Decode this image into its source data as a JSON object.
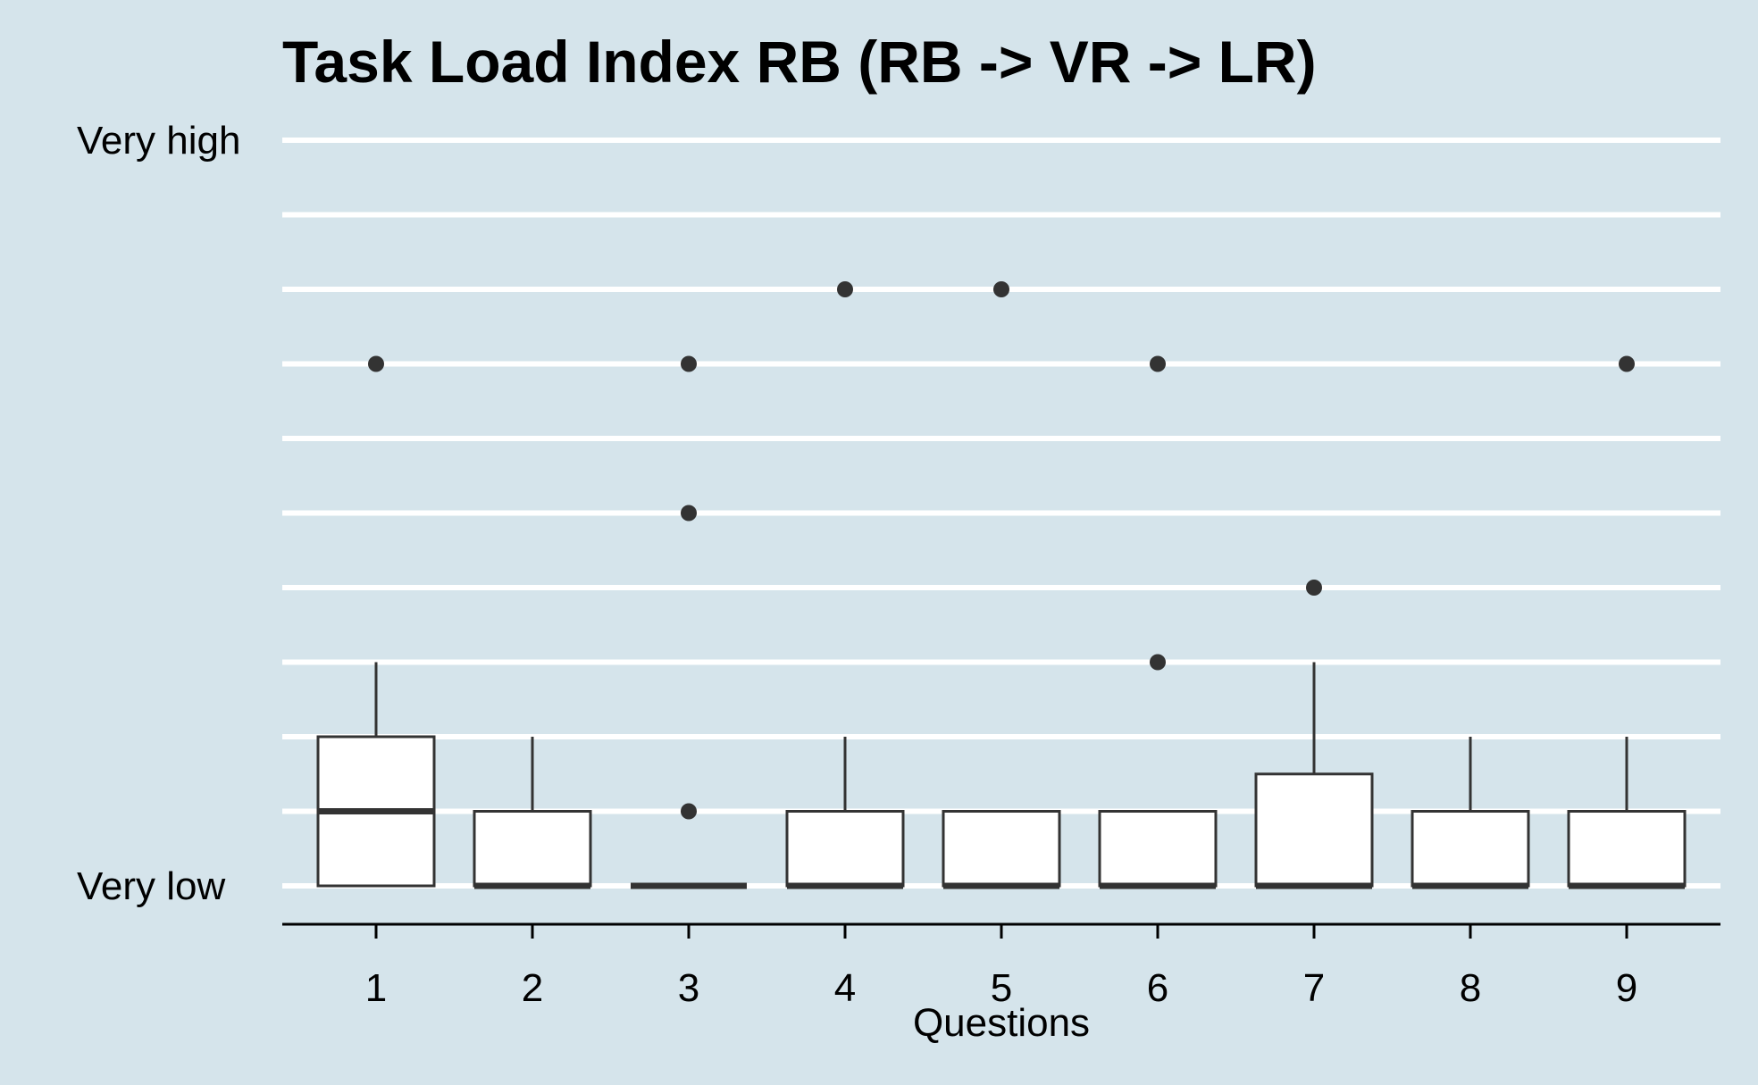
{
  "chart_data": {
    "type": "box",
    "title": "Task Load Index RB (RB -> VR -> LR)",
    "xlabel": "Questions",
    "ylabel": "",
    "ylim": [
      1,
      11
    ],
    "y_tick_labels": [
      {
        "value": 11,
        "label": "Very high"
      },
      {
        "value": 1,
        "label": "Very low"
      }
    ],
    "gridlines": [
      1,
      2,
      3,
      4,
      5,
      6,
      7,
      8,
      9,
      10,
      11
    ],
    "categories": [
      "1",
      "2",
      "3",
      "4",
      "5",
      "6",
      "7",
      "8",
      "9"
    ],
    "boxes": [
      {
        "category": "1",
        "lower_whisker": 1,
        "q1": 1,
        "median": 2,
        "q3": 3,
        "upper_whisker": 4,
        "outliers": [
          8
        ]
      },
      {
        "category": "2",
        "lower_whisker": 1,
        "q1": 1,
        "median": 1,
        "q3": 2,
        "upper_whisker": 3,
        "outliers": []
      },
      {
        "category": "3",
        "lower_whisker": 1,
        "q1": 1,
        "median": 1,
        "q3": 1,
        "upper_whisker": 1,
        "outliers": [
          2,
          6,
          8
        ]
      },
      {
        "category": "4",
        "lower_whisker": 1,
        "q1": 1,
        "median": 1,
        "q3": 2,
        "upper_whisker": 3,
        "outliers": [
          9
        ]
      },
      {
        "category": "5",
        "lower_whisker": 1,
        "q1": 1,
        "median": 1,
        "q3": 2,
        "upper_whisker": 2,
        "outliers": [
          9
        ]
      },
      {
        "category": "6",
        "lower_whisker": 1,
        "q1": 1,
        "median": 1,
        "q3": 2,
        "upper_whisker": 2,
        "outliers": [
          4,
          8
        ]
      },
      {
        "category": "7",
        "lower_whisker": 1,
        "q1": 1,
        "median": 1,
        "q3": 2.5,
        "upper_whisker": 4,
        "outliers": [
          5
        ]
      },
      {
        "category": "8",
        "lower_whisker": 1,
        "q1": 1,
        "median": 1,
        "q3": 2,
        "upper_whisker": 3,
        "outliers": []
      },
      {
        "category": "9",
        "lower_whisker": 1,
        "q1": 1,
        "median": 1,
        "q3": 2,
        "upper_whisker": 3,
        "outliers": [
          8
        ]
      }
    ],
    "colors": {
      "background": "#d5e4eb",
      "grid": "#ffffff",
      "box_fill": "#ffffff",
      "box_stroke": "#333333",
      "outlier": "#333333",
      "axis": "#000000"
    }
  }
}
